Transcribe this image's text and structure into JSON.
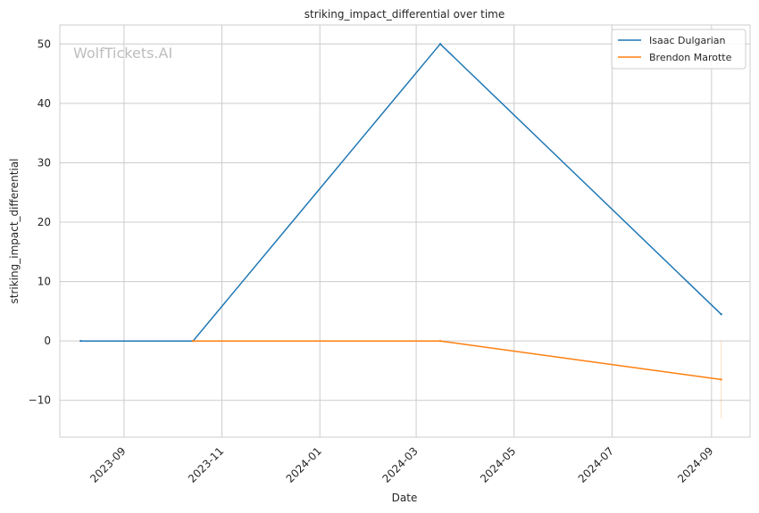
{
  "chart_data": {
    "type": "line",
    "title": "striking_impact_differential over time",
    "xlabel": "Date",
    "ylabel": "striking_impact_differential",
    "watermark": "WolfTickets.AI",
    "x_ticks": [
      "2023-09",
      "2023-11",
      "2024-01",
      "2024-03",
      "2024-05",
      "2024-07",
      "2024-09"
    ],
    "y_ticks": [
      -10,
      0,
      10,
      20,
      30,
      40,
      50
    ],
    "y_tick_labels": [
      "−10",
      "0",
      "10",
      "20",
      "30",
      "40",
      "50"
    ],
    "xlim": [
      "2023-07-23",
      "2024-09-25"
    ],
    "ylim": [
      -16.2,
      53.2
    ],
    "grid": true,
    "legend_position": "top-right",
    "series": [
      {
        "name": "Isaac Dulgarian",
        "color": "#1f77b4",
        "x": [
          "2023-08-05",
          "2023-10-14",
          "2024-03-16",
          "2024-09-07"
        ],
        "y": [
          0,
          0,
          50,
          4.5
        ]
      },
      {
        "name": "Brendon Marotte",
        "color": "#ff7f0e",
        "x": [
          "2023-10-14",
          "2024-03-16",
          "2024-09-07"
        ],
        "y": [
          0,
          0,
          -6.5
        ]
      }
    ]
  }
}
